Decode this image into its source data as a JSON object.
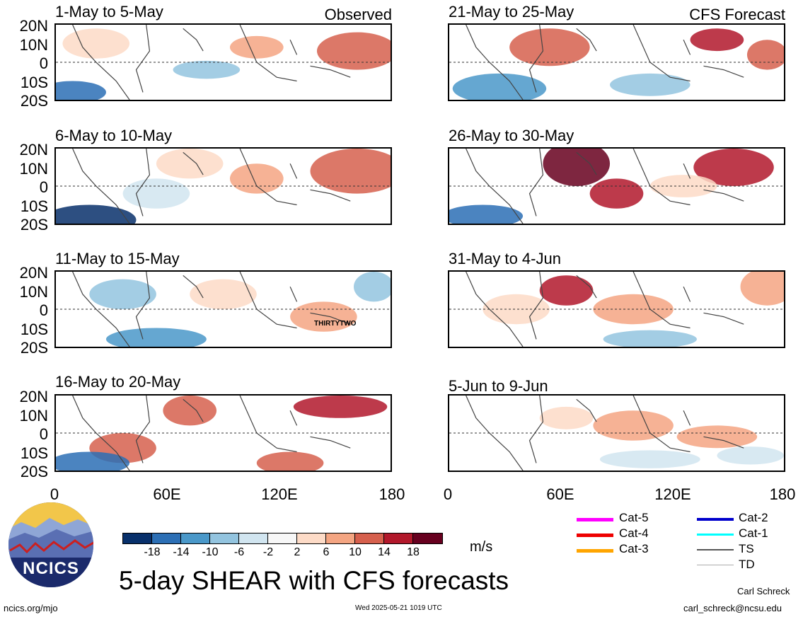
{
  "panels": [
    {
      "title": "1-May to 5-May",
      "corner": "Observed"
    },
    {
      "title": "6-May to 10-May",
      "corner": ""
    },
    {
      "title": "11-May to 15-May",
      "corner": "",
      "annotation": "THIRTYTWO"
    },
    {
      "title": "16-May to 20-May",
      "corner": ""
    },
    {
      "title": "21-May to 25-May",
      "corner": "CFS Forecast"
    },
    {
      "title": "26-May to 30-May",
      "corner": ""
    },
    {
      "title": "31-May to 4-Jun",
      "corner": ""
    },
    {
      "title": "5-Jun to 9-Jun",
      "corner": ""
    }
  ],
  "lat_labels": [
    "20N",
    "10N",
    "0",
    "10S",
    "20S"
  ],
  "lon_labels": [
    "0",
    "60E",
    "120E",
    "180"
  ],
  "colorbar": {
    "colors": [
      "#08306b",
      "#2c6fb5",
      "#4a98c9",
      "#93c4df",
      "#d1e5f0",
      "#f7f7f7",
      "#fddbc7",
      "#f4a582",
      "#d6604d",
      "#b2182b",
      "#67001f"
    ],
    "labels": [
      "-18",
      "-14",
      "-10",
      "-6",
      "-2",
      "2",
      "6",
      "10",
      "14",
      "18"
    ],
    "units": "m/s"
  },
  "legend": [
    {
      "label": "Cat-5",
      "color": "#ff00ff"
    },
    {
      "label": "Cat-4",
      "color": "#ee0000"
    },
    {
      "label": "Cat-3",
      "color": "#ffa500"
    },
    {
      "label": "Cat-2",
      "color": "#0000cc"
    },
    {
      "label": "Cat-1",
      "color": "#00ffff"
    },
    {
      "label": "TS",
      "color": "#555555"
    },
    {
      "label": "TD",
      "color": "#aaaaaa"
    }
  ],
  "logo_text": "NCICS",
  "main_title": "5-day SHEAR with CFS forecasts",
  "footer": {
    "left": "ncics.org/mjo",
    "center": "Wed 2025-05-21 1019 UTC",
    "author": "Carl Schreck",
    "email": "carl_schreck@ncsu.edu"
  }
}
